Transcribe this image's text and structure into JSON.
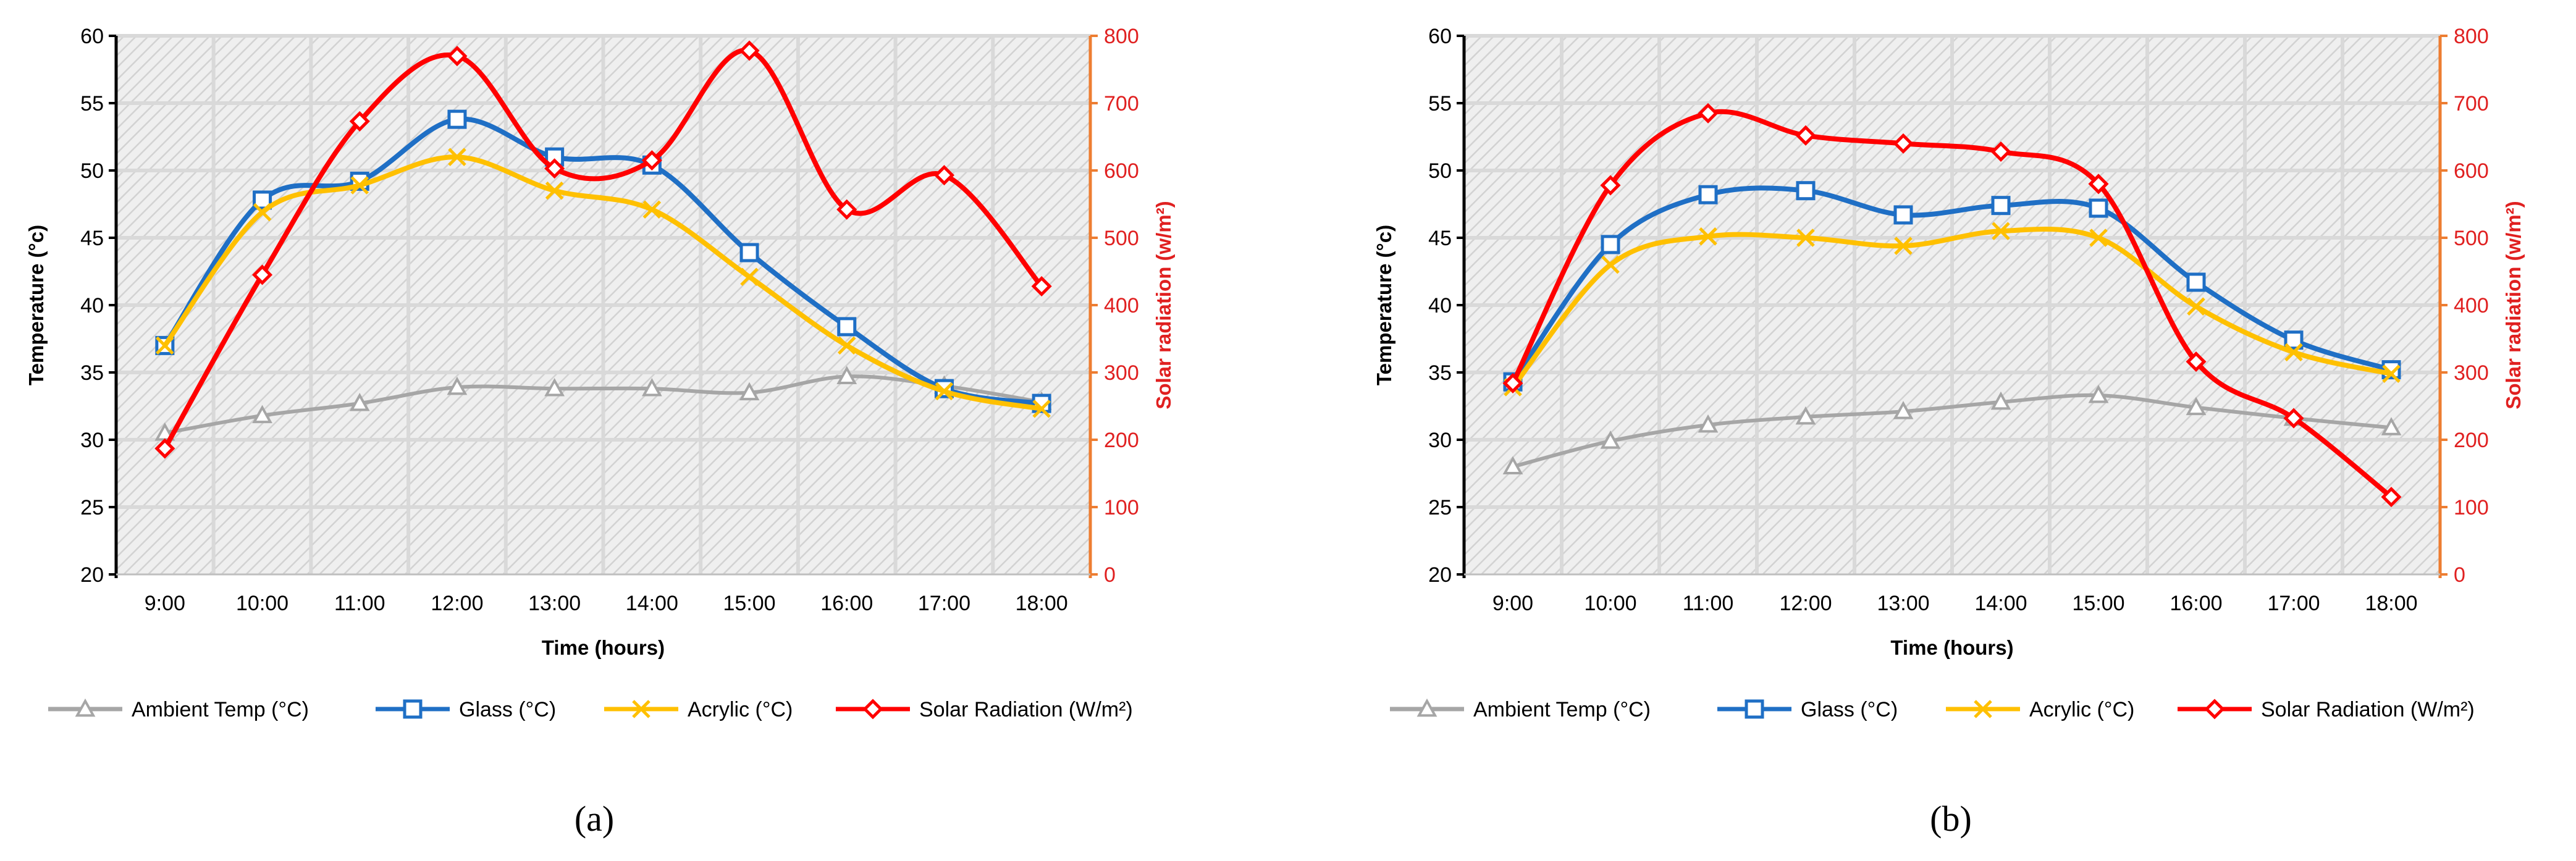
{
  "colors": {
    "ambient": "#a6a6a6",
    "glass": "#1f6fc5",
    "acrylic": "#ffc000",
    "solar": "#ff0000",
    "right_axis_line": "#ed7d31",
    "right_axis_text": "#e02020",
    "grid": "#d9d9d9",
    "plot_bg": "#ededed"
  },
  "chart_data": [
    {
      "type": "line",
      "panel_label": "(a)",
      "categories": [
        "9:00",
        "10:00",
        "11:00",
        "12:00",
        "13:00",
        "14:00",
        "15:00",
        "16:00",
        "17:00",
        "18:00"
      ],
      "xlabel": "Time (hours)",
      "ylabel": "Temperature (°c)",
      "ylabel_right": "Solar radiation (w/m²)",
      "ylim": [
        20,
        60
      ],
      "yticks": [
        "20",
        "25",
        "30",
        "35",
        "40",
        "45",
        "50",
        "55",
        "60"
      ],
      "ylim_right": [
        0,
        800
      ],
      "yticks_right": [
        "0",
        "100",
        "200",
        "300",
        "400",
        "500",
        "600",
        "700",
        "800"
      ],
      "series": [
        {
          "name": "Ambient Temp (°C)",
          "key": "ambient",
          "axis": "left",
          "marker": "triangle",
          "values": [
            30.5,
            31.8,
            32.7,
            33.9,
            33.8,
            33.8,
            33.5,
            34.7,
            34.0,
            32.8
          ]
        },
        {
          "name": "Glass (°C)",
          "key": "glass",
          "axis": "left",
          "marker": "square",
          "values": [
            37.0,
            47.8,
            49.2,
            53.8,
            51.0,
            50.4,
            43.9,
            38.4,
            33.8,
            32.7
          ]
        },
        {
          "name": "Acrylic (°C)",
          "key": "acrylic",
          "axis": "left",
          "marker": "x",
          "values": [
            37.0,
            46.9,
            48.9,
            51.0,
            48.5,
            47.1,
            42.1,
            37.0,
            33.6,
            32.3
          ]
        },
        {
          "name": "Solar Radiation (W/m²)",
          "key": "solar",
          "axis": "right",
          "marker": "diamond",
          "values": [
            187,
            445,
            673,
            770,
            603,
            615,
            778,
            542,
            593,
            428
          ]
        }
      ]
    },
    {
      "type": "line",
      "panel_label": "(b)",
      "categories": [
        "9:00",
        "10:00",
        "11:00",
        "12:00",
        "13:00",
        "14:00",
        "15:00",
        "16:00",
        "17:00",
        "18:00"
      ],
      "xlabel": "Time (hours)",
      "ylabel": "Temperature (°c)",
      "ylabel_right": "Solar radiation (w/m²)",
      "ylim": [
        20,
        60
      ],
      "yticks": [
        "20",
        "25",
        "30",
        "35",
        "40",
        "45",
        "50",
        "55",
        "60"
      ],
      "ylim_right": [
        0,
        800
      ],
      "yticks_right": [
        "0",
        "100",
        "200",
        "300",
        "400",
        "500",
        "600",
        "700",
        "800"
      ],
      "series": [
        {
          "name": "Ambient Temp (°C)",
          "key": "ambient",
          "axis": "left",
          "marker": "triangle",
          "values": [
            28.0,
            29.9,
            31.1,
            31.7,
            32.1,
            32.8,
            33.3,
            32.4,
            31.6,
            30.9
          ]
        },
        {
          "name": "Glass (°C)",
          "key": "glass",
          "axis": "left",
          "marker": "square",
          "values": [
            34.3,
            44.5,
            48.2,
            48.5,
            46.7,
            47.4,
            47.2,
            41.7,
            37.4,
            35.2
          ]
        },
        {
          "name": "Acrylic (°C)",
          "key": "acrylic",
          "axis": "left",
          "marker": "x",
          "values": [
            33.9,
            43.0,
            45.1,
            45.0,
            44.4,
            45.5,
            45.0,
            39.9,
            36.5,
            34.9
          ]
        },
        {
          "name": "Solar Radiation (W/m²)",
          "key": "solar",
          "axis": "right",
          "marker": "diamond",
          "values": [
            284,
            578,
            685,
            652,
            640,
            628,
            580,
            316,
            232,
            115
          ]
        }
      ]
    }
  ]
}
